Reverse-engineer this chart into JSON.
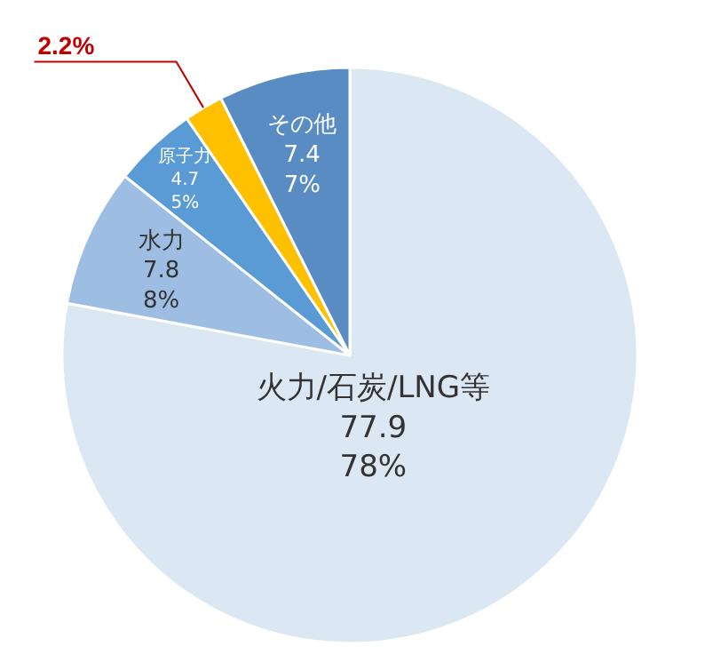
{
  "chart_data": {
    "type": "pie",
    "categories": [
      "火力/石炭/LNG等",
      "水力",
      "原子力",
      null,
      "その他"
    ],
    "values": [
      77.9,
      7.8,
      4.7,
      2.2,
      7.4
    ],
    "colors": [
      "#dce7f4",
      "#9dbde2",
      "#5b9bd5",
      "#ffc000",
      "#5a8cc4"
    ],
    "value_labels": [
      "77.9\n78%",
      "7.8\n8%",
      "4.7\n5%",
      "2.2%",
      "7.4\n7%"
    ],
    "legend": false
  }
}
